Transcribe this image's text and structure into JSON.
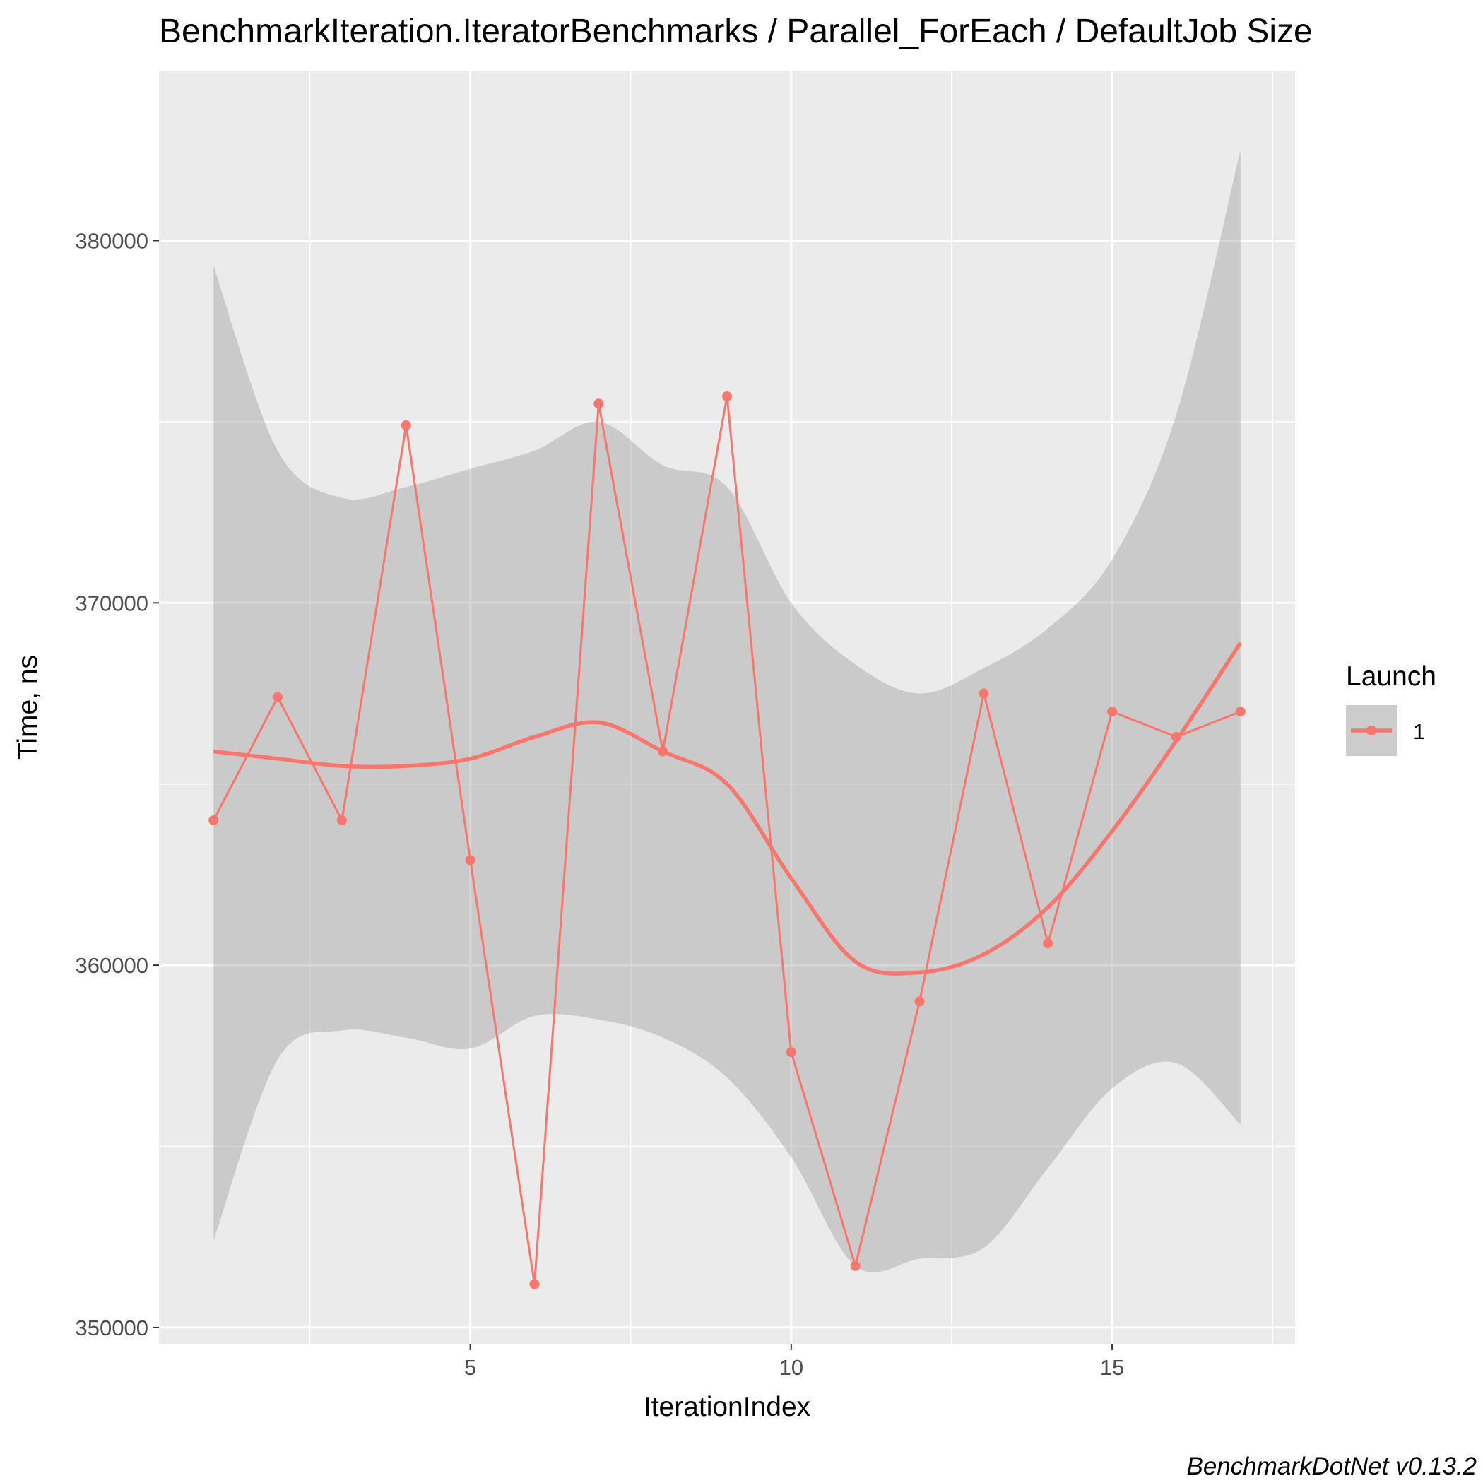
{
  "chart_data": {
    "type": "line",
    "title": "BenchmarkIteration.IteratorBenchmarks / Parallel_ForEach / DefaultJob Size",
    "xlabel": "IterationIndex",
    "ylabel": "Time, ns",
    "caption": "BenchmarkDotNet v0.13.2",
    "xlim": [
      0.15,
      17.85
    ],
    "ylim": [
      349550,
      384690
    ],
    "x_ticks": [
      5,
      10,
      15
    ],
    "x_tick_labels": [
      "5",
      "10",
      "15"
    ],
    "y_ticks": [
      350000,
      360000,
      370000,
      380000
    ],
    "y_tick_labels": [
      "350000",
      "360000",
      "370000",
      "380000"
    ],
    "grid": true,
    "legend": {
      "title": "Launch",
      "position": "right",
      "entries": [
        "1"
      ]
    },
    "series": [
      {
        "name": "1",
        "color": "#F8766D",
        "x": [
          1,
          2,
          3,
          4,
          5,
          6,
          7,
          8,
          9,
          10,
          11,
          12,
          13,
          14,
          15,
          16,
          17
        ],
        "values": [
          364000,
          367400,
          364000,
          374900,
          362900,
          351200,
          375500,
          365900,
          375700,
          357600,
          351700,
          359000,
          367500,
          360600,
          367000,
          366300,
          367000
        ]
      }
    ],
    "smooth": {
      "color": "#F8766D",
      "band_color": "#999999",
      "x": [
        1,
        2,
        3,
        4,
        5,
        6,
        7,
        8,
        9,
        10,
        11,
        12,
        13,
        14,
        15,
        16,
        17
      ],
      "values": [
        365900,
        365700,
        365500,
        365500,
        365700,
        366300,
        366700,
        365900,
        365000,
        362400,
        360100,
        359800,
        360300,
        361600,
        363700,
        366200,
        368900
      ],
      "lower": [
        352400,
        357400,
        358200,
        358000,
        357700,
        358600,
        358500,
        358000,
        356900,
        354700,
        351700,
        351900,
        352200,
        354400,
        356600,
        357300,
        355600
      ],
      "upper": [
        379300,
        374200,
        372900,
        373200,
        373700,
        374200,
        375000,
        373800,
        373200,
        370000,
        368300,
        367500,
        368200,
        369300,
        371200,
        375200,
        382500
      ]
    }
  }
}
